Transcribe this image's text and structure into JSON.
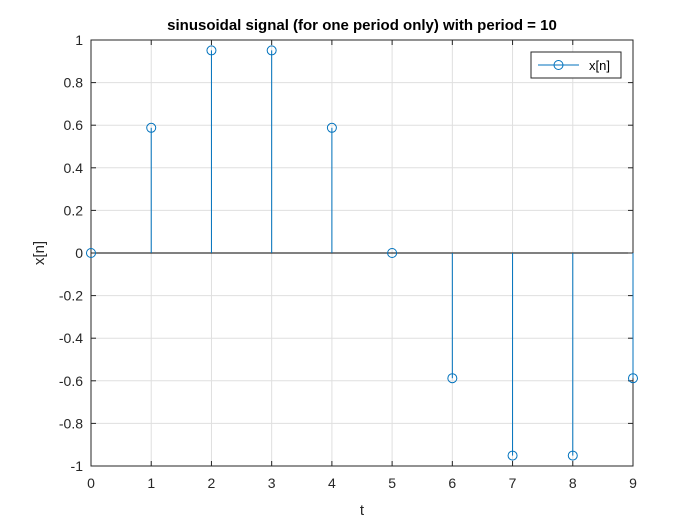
{
  "chart_data": {
    "type": "stem",
    "title": "sinusoidal signal (for one period only) with period = 10",
    "xlabel": "t",
    "ylabel": "x[n]",
    "xlim": [
      0,
      9
    ],
    "ylim": [
      -1,
      1
    ],
    "xticks": [
      0,
      1,
      2,
      3,
      4,
      5,
      6,
      7,
      8,
      9
    ],
    "xtick_labels": [
      "0",
      "1",
      "2",
      "3",
      "4",
      "5",
      "6",
      "7",
      "8",
      "9"
    ],
    "yticks": [
      -1,
      -0.8,
      -0.6,
      -0.4,
      -0.2,
      0,
      0.2,
      0.4,
      0.6,
      0.8,
      1
    ],
    "ytick_labels": [
      "-1",
      "-0.8",
      "-0.6",
      "-0.4",
      "-0.2",
      "0",
      "0.2",
      "0.4",
      "0.6",
      "0.8",
      "1"
    ],
    "grid": true,
    "legend_position": "top-right",
    "series": [
      {
        "name": "x[n]",
        "color": "#0072BD",
        "marker": "circle",
        "x": [
          0,
          1,
          2,
          3,
          4,
          5,
          6,
          7,
          8,
          9
        ],
        "y": [
          0,
          0.5878,
          0.9511,
          0.9511,
          0.5878,
          0,
          -0.5878,
          -0.9511,
          -0.9511,
          -0.5878
        ]
      }
    ]
  }
}
